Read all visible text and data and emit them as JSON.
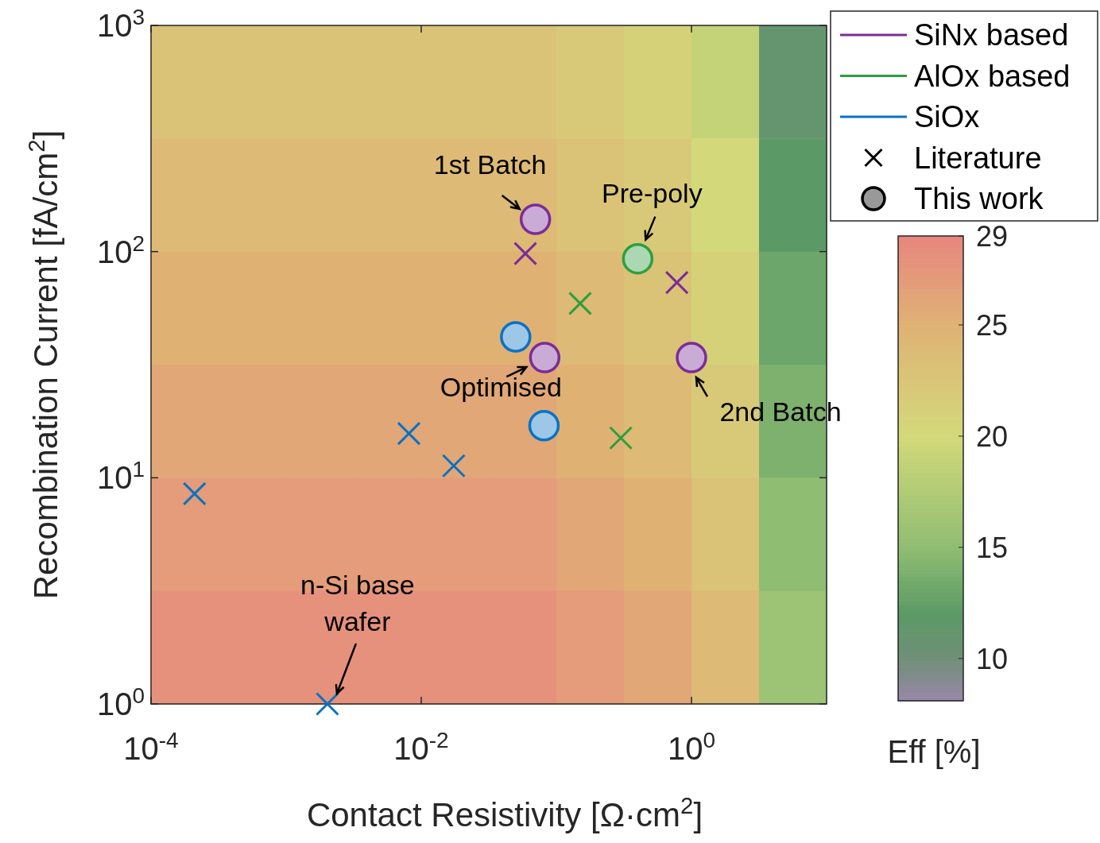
{
  "chart_data": [
    {
      "type": "heatmap",
      "clabel": "Eff [%]",
      "categories": [
        null,
        null,
        null,
        null,
        null,
        null,
        null,
        null,
        null,
        null
      ],
      "y_categories": [
        null,
        null,
        null,
        null,
        null,
        null
      ],
      "cells": [
        [
          23,
          23,
          23,
          23,
          23,
          23,
          22,
          21,
          19,
          11
        ],
        [
          24,
          24,
          24,
          24,
          24,
          24,
          23,
          22,
          20,
          12
        ],
        [
          25,
          25,
          25,
          25,
          25,
          25,
          24,
          23,
          21,
          13
        ],
        [
          26,
          26,
          26,
          26,
          26,
          26,
          25,
          24,
          22,
          14
        ],
        [
          27,
          27,
          27,
          27,
          27,
          27,
          26,
          25,
          23,
          15
        ],
        [
          28,
          28,
          28,
          28,
          28,
          28,
          27,
          26,
          24,
          16
        ]
      ],
      "clim": [
        8.1,
        29
      ],
      "cticks": [
        10,
        15,
        20,
        25,
        29
      ]
    },
    {
      "type": "scatter",
      "xlabel": "Contact Resistivity [Ω·cm$^{2}$]",
      "ylabel": "Recombination Current [fA/cm$^{2}$]",
      "log": "xy",
      "xlim": [
        0.0001,
        10
      ],
      "ylim": [
        1,
        1000
      ],
      "xticks": [
        {
          "value": 0.0001,
          "label": "10$^{-4}$"
        },
        {
          "value": 0.01,
          "label": "10$^{-2}$"
        },
        {
          "value": 1,
          "label": "10$^{0}$"
        }
      ],
      "yticks": [
        {
          "value": 1,
          "label": "10$^{0}$"
        },
        {
          "value": 10,
          "label": "10$^{1}$"
        },
        {
          "value": 100,
          "label": "10$^{2}$"
        },
        {
          "value": 1000,
          "label": "10$^{3}$"
        }
      ],
      "legend": "top right",
      "grid": false,
      "series": [
        {
          "type": "scatter",
          "marker": "circle",
          "color": "#7b2d96",
          "x": [
            0.07,
            0.082,
            1.0
          ],
          "values": [
            139,
            34,
            34
          ]
        },
        {
          "type": "scatter",
          "marker": "cross",
          "color": "#7b2d96",
          "x": [
            0.059,
            0.78
          ],
          "values": [
            98,
            73
          ]
        },
        {
          "type": "scatter",
          "marker": "circle",
          "color": "#2e9e3e",
          "x": [
            0.4
          ],
          "values": [
            93
          ]
        },
        {
          "type": "scatter",
          "marker": "cross",
          "color": "#2e9e3e",
          "x": [
            0.15,
            0.3
          ],
          "values": [
            59,
            15
          ]
        },
        {
          "type": "scatter",
          "marker": "circle",
          "color": "#0a72c4",
          "x": [
            0.05,
            0.081
          ],
          "values": [
            42,
            17
          ]
        },
        {
          "type": "scatter",
          "marker": "cross",
          "color": "#0a72c4",
          "x": [
            0.00021,
            0.0081,
            0.0174,
            0.00202
          ],
          "values": [
            8.5,
            15.7,
            11.3,
            1
          ]
        },
        {
          "name": "SiNx based",
          "type": "line",
          "color": "#7b2d96"
        },
        {
          "name": "AlOx based",
          "type": "line",
          "color": "#2e9e3e"
        },
        {
          "name": "SiOx",
          "type": "line",
          "color": "#0a72c4"
        },
        {
          "name": "Literature",
          "type": "scatter",
          "marker": "cross",
          "color": "#000000"
        },
        {
          "name": "This work",
          "type": "scatter",
          "marker": "circle",
          "color": "#000000"
        }
      ],
      "annotations": [
        {
          "text": "1st Batch",
          "x": 0.07,
          "y": 139
        },
        {
          "text": "Pre-poly",
          "x": 0.4,
          "y": 93
        },
        {
          "text": "Optimised",
          "x": 0.082,
          "y": 34
        },
        {
          "text": "2nd Batch",
          "x": 1.0,
          "y": 34
        },
        {
          "text": "n-Si base wafer",
          "x": 0.00202,
          "y": 1
        }
      ]
    }
  ]
}
